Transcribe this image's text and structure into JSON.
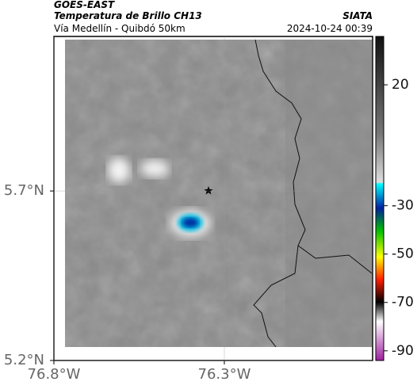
{
  "header": {
    "title": "GOES-EAST",
    "subtitle": "Temperatura de Brillo CH13",
    "location": "Vía Medellín - Quibdó 50km",
    "source": "SIATA",
    "datetime": "2024-10-24 00:39"
  },
  "map": {
    "xlim": [
      -76.8,
      -75.865
    ],
    "ylim": [
      5.2,
      6.156
    ],
    "xticks": [
      {
        "value": -76.8,
        "label": "76.8°W"
      },
      {
        "value": -76.3,
        "label": "76.3°W"
      }
    ],
    "yticks": [
      {
        "value": 5.7,
        "label": "5.7°N"
      },
      {
        "value": 5.2,
        "label": "5.2°N"
      }
    ]
  },
  "colorbar": {
    "lim": [
      -94,
      40
    ],
    "ticks": [
      20,
      -30,
      -50,
      -70,
      -90
    ]
  }
}
